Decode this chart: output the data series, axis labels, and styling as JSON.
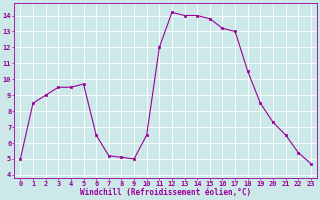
{
  "x": [
    0,
    1,
    2,
    3,
    4,
    5,
    6,
    7,
    8,
    9,
    10,
    11,
    12,
    13,
    14,
    15,
    16,
    17,
    18,
    19,
    20,
    21,
    22,
    23
  ],
  "y": [
    5.0,
    8.5,
    9.0,
    9.5,
    9.5,
    9.7,
    6.5,
    5.2,
    5.1,
    5.0,
    6.5,
    12.0,
    14.2,
    14.0,
    14.0,
    13.8,
    13.2,
    13.0,
    10.5,
    8.5,
    7.3,
    6.5,
    5.4,
    4.7
  ],
  "xlim": [
    -0.5,
    23.5
  ],
  "ylim": [
    3.8,
    14.8
  ],
  "xticks": [
    0,
    1,
    2,
    3,
    4,
    5,
    6,
    7,
    8,
    9,
    10,
    11,
    12,
    13,
    14,
    15,
    16,
    17,
    18,
    19,
    20,
    21,
    22,
    23
  ],
  "yticks": [
    4,
    5,
    6,
    7,
    8,
    9,
    10,
    11,
    12,
    13,
    14
  ],
  "xlabel": "Windchill (Refroidissement éolien,°C)",
  "line_color": "#990099",
  "marker": "s",
  "marker_size": 2.0,
  "bg_color": "#cce8e8",
  "grid_color": "#ffffff",
  "tick_color": "#990099",
  "label_color": "#990099",
  "tick_fontsize": 5.0,
  "xlabel_fontsize": 5.5
}
